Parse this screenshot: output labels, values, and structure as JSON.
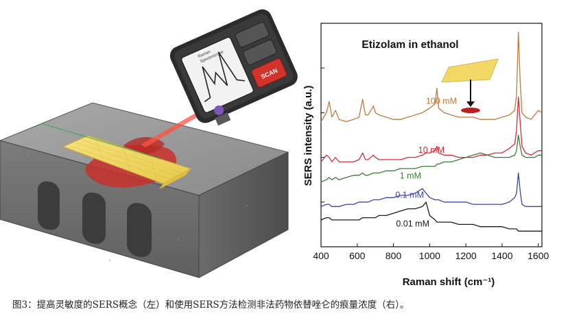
{
  "caption": "图3：提高灵敏度的SERS概念（左）和使用SERS方法检测非法药物依替唑仑的痕量浓度（右）。",
  "device": {
    "button_label": "SCAN",
    "screen_lines": [
      "Raman",
      "Spectroscope"
    ]
  },
  "chart_data": {
    "type": "line",
    "title": "Etizolam in ethanol",
    "xlabel": "Raman shift (cm⁻¹)",
    "ylabel": "SERS intensity (a.u.)",
    "xlim": [
      400,
      1620
    ],
    "ylim": [
      0,
      100
    ],
    "xticks": [
      400,
      600,
      800,
      1000,
      1200,
      1400,
      1600
    ],
    "x": [
      400,
      430,
      445,
      460,
      480,
      500,
      540,
      580,
      610,
      630,
      645,
      660,
      690,
      700,
      720,
      760,
      800,
      840,
      880,
      920,
      960,
      980,
      1000,
      1030,
      1040,
      1050,
      1080,
      1120,
      1160,
      1200,
      1240,
      1280,
      1320,
      1360,
      1400,
      1440,
      1470,
      1480,
      1490,
      1500,
      1510,
      1530,
      1560,
      1580,
      1600,
      1620
    ],
    "series": [
      {
        "name": "100 mM",
        "color": "#c07a3b",
        "values": [
          56,
          60,
          65,
          58,
          61,
          57,
          56,
          57,
          58,
          66,
          59,
          59,
          63,
          60,
          59,
          58,
          57,
          57,
          58,
          59,
          60,
          61,
          62,
          64,
          71,
          62,
          60,
          59,
          58,
          58,
          58,
          57,
          57,
          57,
          58,
          59,
          61,
          68,
          96,
          74,
          60,
          58,
          57,
          59,
          61,
          60
        ]
      },
      {
        "name": "10 mM",
        "color": "#d42a38",
        "values": [
          38,
          41,
          40,
          38,
          40,
          38,
          38,
          38,
          39,
          42,
          39,
          39,
          41,
          40,
          39,
          39,
          39,
          39,
          40,
          40,
          41,
          42,
          42,
          43,
          45,
          42,
          41,
          41,
          40,
          40,
          40,
          41,
          41,
          42,
          42,
          44,
          46,
          52,
          67,
          56,
          45,
          42,
          41,
          42,
          43,
          43
        ]
      },
      {
        "name": "1 mM",
        "color": "#3d7a37",
        "values": [
          29,
          30,
          31,
          30,
          31,
          30,
          31,
          32,
          32,
          33,
          32,
          32,
          33,
          33,
          33,
          34,
          34,
          35,
          35,
          35,
          36,
          36,
          36,
          36,
          37,
          37,
          38,
          38,
          39,
          40,
          41,
          42,
          41,
          40,
          40,
          40,
          41,
          43,
          50,
          45,
          41,
          40,
          40,
          40,
          41,
          41
        ]
      },
      {
        "name": "0.1 mM",
        "color": "#3b44a8",
        "values": [
          18,
          19,
          19,
          18,
          18,
          18,
          19,
          19,
          20,
          20,
          20,
          20,
          21,
          21,
          21,
          22,
          22,
          23,
          23,
          24,
          26,
          24,
          22,
          21,
          21,
          21,
          20,
          20,
          20,
          20,
          19,
          19,
          19,
          19,
          19,
          20,
          22,
          24,
          33,
          25,
          19,
          18,
          18,
          18,
          18,
          18
        ]
      },
      {
        "name": "0.01 mM",
        "color": "#1a1a1a",
        "values": [
          12,
          13,
          13,
          12,
          12,
          12,
          12,
          12,
          12,
          13,
          13,
          13,
          13,
          13,
          14,
          14,
          15,
          16,
          17,
          17,
          18,
          20,
          14,
          12,
          11,
          11,
          11,
          11,
          10,
          10,
          10,
          9,
          9,
          9,
          9,
          8,
          8,
          8,
          7,
          7,
          7,
          7,
          7,
          7,
          7,
          7
        ]
      }
    ],
    "grid": false,
    "legend": "inline labels"
  }
}
